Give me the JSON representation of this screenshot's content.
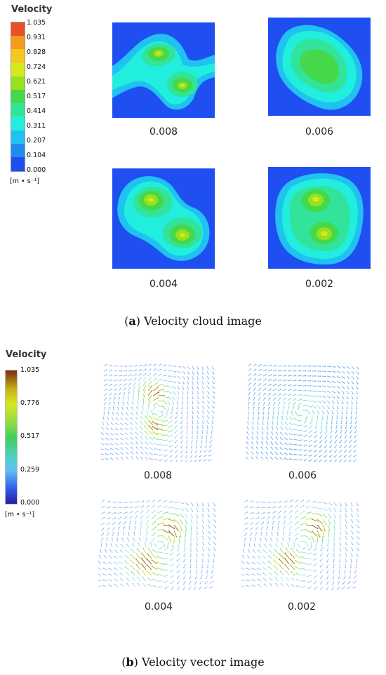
{
  "part_a": {
    "legend": {
      "title": "Velocity",
      "ticks": [
        "1.035",
        "0.931",
        "0.828",
        "0.724",
        "0.621",
        "0.517",
        "0.414",
        "0.311",
        "0.207",
        "0.104",
        "0.000"
      ],
      "unit": "[m • s⁻¹]",
      "colors": [
        "#e8502a",
        "#f39a1f",
        "#f3c81f",
        "#d8e81f",
        "#96e21f",
        "#45d84a",
        "#32e39a",
        "#22eedd",
        "#1fc2f0",
        "#1f8cf0",
        "#1f4ff0"
      ]
    },
    "panels": [
      {
        "label": "0.008"
      },
      {
        "label": "0.006"
      },
      {
        "label": "0.004"
      },
      {
        "label": "0.002"
      }
    ],
    "caption_letter": "a",
    "caption_text": "Velocity cloud image"
  },
  "part_b": {
    "legend": {
      "title": "Velocity",
      "ticks": [
        "1.035",
        "0.776",
        "0.517",
        "0.259",
        "0.000"
      ],
      "unit": "[m • s⁻¹]"
    },
    "panels": [
      {
        "label": "0.008"
      },
      {
        "label": "0.006"
      },
      {
        "label": "0.004"
      },
      {
        "label": "0.002"
      }
    ],
    "caption_letter": "b",
    "caption_text": "Velocity vector image"
  }
}
